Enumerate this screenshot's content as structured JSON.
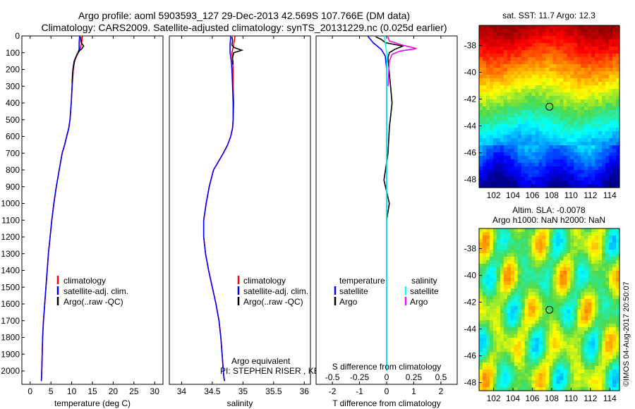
{
  "title_line1": "Argo profile: aoml 5903593_127 29-Dec-2013 42.569S 107.766E (DM data)",
  "title_line2": "Climatology: CARS2009. Satellite-adjusted climatology: synTS_20131229.nc (0.025d earlier)",
  "colors": {
    "climatology": "#ff0000",
    "satellite": "#0000ff",
    "argo": "#000000",
    "sal_satellite": "#00ffff",
    "sal_argo": "#ff00ff"
  },
  "chart_data": [
    {
      "id": "temperature",
      "type": "line",
      "xlabel": "temperature (deg C)",
      "ylabel": "",
      "xlim": [
        -2,
        32
      ],
      "ylim": [
        2080,
        0
      ],
      "xticks": [
        0,
        5,
        10,
        15,
        20,
        25,
        30
      ],
      "yticks": [
        0,
        100,
        200,
        300,
        400,
        500,
        600,
        700,
        800,
        900,
        1000,
        1100,
        1200,
        1300,
        1400,
        1500,
        1600,
        1700,
        1800,
        1900,
        2000
      ],
      "legend": [
        "climatology",
        "satellite-adj. clim.",
        "Argo(..raw -QC)"
      ],
      "series": [
        {
          "name": "climatology",
          "color": "#ff0000",
          "x": [
            12.6,
            12.4,
            12.0,
            11.6,
            11.2,
            10.7,
            10.4,
            10.1,
            9.9,
            9.6,
            9.3,
            8.8,
            8.3,
            7.7,
            7.0,
            6.3,
            5.7,
            5.2,
            4.8,
            4.4,
            4.1,
            3.8,
            3.5,
            3.2,
            3.0,
            2.9,
            2.8,
            2.75,
            2.7
          ],
          "y": [
            0,
            40,
            80,
            100,
            120,
            150,
            200,
            300,
            400,
            500,
            550,
            600,
            650,
            700,
            800,
            900,
            1000,
            1100,
            1200,
            1300,
            1400,
            1500,
            1600,
            1700,
            1800,
            1900,
            2000,
            2040,
            2060
          ]
        },
        {
          "name": "satellite-adj. clim.",
          "color": "#0000ff",
          "x": [
            11.9,
            11.8,
            11.8,
            11.5,
            11.1,
            10.6,
            10.3,
            10.1,
            9.9,
            9.6,
            9.3,
            8.8,
            8.3,
            7.7,
            7.0,
            6.3,
            5.7,
            5.2,
            4.8,
            4.4,
            4.1,
            3.8,
            3.5,
            3.2,
            3.0,
            2.9,
            2.8,
            2.75,
            2.7
          ],
          "y": [
            0,
            40,
            80,
            100,
            120,
            150,
            200,
            300,
            400,
            500,
            550,
            600,
            650,
            700,
            800,
            900,
            1000,
            1100,
            1200,
            1300,
            1400,
            1500,
            1600,
            1700,
            1800,
            1900,
            2000,
            2040,
            2060
          ]
        },
        {
          "name": "Argo(..raw -QC)",
          "color": "#000000",
          "x": [
            12.2,
            12.2,
            12.3,
            12.9,
            12.5,
            11.8,
            11.3,
            10.8,
            10.4,
            10.2,
            10.1
          ],
          "y": [
            5,
            20,
            40,
            60,
            75,
            90,
            110,
            140,
            180,
            230,
            280
          ]
        }
      ]
    },
    {
      "id": "salinity",
      "type": "line",
      "xlabel": "salinity",
      "ylabel": "",
      "xlim": [
        33.8,
        36.1
      ],
      "ylim": [
        2080,
        0
      ],
      "xticks": [
        34,
        34.5,
        35,
        35.5,
        36
      ],
      "legend": [
        "climatology",
        "satellite-adj. clim.",
        "Argo(..raw -QC)"
      ],
      "annotation_line1": "Argo equivalent",
      "annotation_line2": "PI: STEPHEN RISER , KENNETH JOHNSON",
      "series": [
        {
          "name": "climatology",
          "color": "#ff0000",
          "x": [
            34.87,
            34.85,
            34.82,
            34.83,
            34.84,
            34.84,
            34.85,
            34.84,
            34.83,
            34.8,
            34.75,
            34.68,
            34.6,
            34.52,
            34.45,
            34.4,
            34.36,
            34.36,
            34.39,
            34.44,
            34.5,
            34.56,
            34.61,
            34.64,
            34.66,
            34.68,
            34.69,
            34.7
          ],
          "y": [
            0,
            50,
            100,
            150,
            200,
            300,
            400,
            500,
            550,
            600,
            650,
            700,
            750,
            800,
            900,
            1000,
            1100,
            1200,
            1300,
            1400,
            1500,
            1600,
            1700,
            1800,
            1900,
            2000,
            2040,
            2060
          ]
        },
        {
          "name": "satellite-adj. clim.",
          "color": "#0000ff",
          "x": [
            34.8,
            34.79,
            34.79,
            34.81,
            34.82,
            34.83,
            34.84,
            34.84,
            34.83,
            34.8,
            34.75,
            34.68,
            34.6,
            34.52,
            34.45,
            34.4,
            34.36,
            34.36,
            34.39,
            34.44,
            34.5,
            34.56,
            34.61,
            34.64,
            34.66,
            34.68,
            34.69,
            34.7
          ],
          "y": [
            0,
            50,
            100,
            150,
            200,
            300,
            400,
            500,
            550,
            600,
            650,
            700,
            750,
            800,
            900,
            1000,
            1100,
            1200,
            1300,
            1400,
            1500,
            1600,
            1700,
            1800,
            1900,
            2000,
            2040,
            2060
          ]
        },
        {
          "name": "Argo(..raw -QC)",
          "color": "#000000",
          "x": [
            34.82,
            34.83,
            34.82,
            34.86,
            34.98,
            34.85,
            34.83,
            34.84
          ],
          "y": [
            5,
            30,
            55,
            70,
            85,
            100,
            130,
            170
          ]
        }
      ]
    },
    {
      "id": "difference",
      "type": "line",
      "xlabel": "T difference from climatology",
      "ylabel": "",
      "xlim": [
        -2.6,
        2.6
      ],
      "ylim": [
        2080,
        0
      ],
      "xticks": [
        -2,
        -1,
        0,
        1,
        2
      ],
      "s_xlabel": "S difference from climatology",
      "s_xticks": [
        "-0.5",
        "-0.25",
        "0",
        "0.25",
        "0.5"
      ],
      "legend_temperature": "temperature",
      "legend_salinity": "salinity",
      "legend_satellite": "satellite",
      "legend_argo": "Argo",
      "series": [
        {
          "name": "temperature satellite",
          "color": "#0000ff",
          "x": [
            -0.7,
            -0.5,
            -0.2,
            -0.05,
            0.0,
            0.0,
            0.0
          ],
          "y": [
            0,
            40,
            80,
            120,
            200,
            1000,
            2000
          ]
        },
        {
          "name": "temperature Argo",
          "color": "#000000",
          "x": [
            -0.4,
            -0.2,
            -0.05,
            0.6,
            0.3,
            0.1,
            0.05,
            0.2,
            0.1,
            0.05,
            -0.1,
            0.1,
            0.0
          ],
          "y": [
            5,
            20,
            40,
            60,
            80,
            100,
            130,
            400,
            550,
            700,
            860,
            1000,
            1100
          ]
        },
        {
          "name": "salinity satellite",
          "color": "#00ffff",
          "x": [
            -0.08,
            -0.04,
            0.02,
            0.0,
            0.0,
            0.0
          ],
          "y": [
            0,
            60,
            120,
            200,
            1000,
            2000
          ]
        },
        {
          "name": "salinity Argo",
          "color": "#ff00ff",
          "x": [
            0.05,
            0.1,
            0.6,
            1.1,
            0.5,
            0.2,
            0.1,
            0.05
          ],
          "y": [
            5,
            30,
            55,
            75,
            90,
            110,
            150,
            300
          ]
        }
      ]
    },
    {
      "id": "sst_map",
      "type": "heatmap",
      "title": "sat. SST: 11.7 Argo: 12.3",
      "xlim": [
        100.5,
        115
      ],
      "ylim": [
        -48.6,
        -36.5
      ],
      "xticks": [
        102,
        104,
        106,
        108,
        110,
        112,
        114
      ],
      "yticks": [
        -38,
        -40,
        -42,
        -44,
        -46,
        -48
      ],
      "marker": {
        "lon": 107.766,
        "lat": -42.569
      }
    },
    {
      "id": "sla_map",
      "type": "heatmap",
      "title_line1": "Altim. SLA: -0.0078",
      "title_line2": "Argo h1000: NaN h2000: NaN",
      "xlim": [
        100.5,
        115
      ],
      "ylim": [
        -48.6,
        -36.5
      ],
      "xticks": [
        102,
        104,
        106,
        108,
        110,
        112,
        114
      ],
      "yticks": [
        -38,
        -40,
        -42,
        -44,
        -46,
        -48
      ],
      "marker": {
        "lon": 107.766,
        "lat": -42.569
      }
    }
  ],
  "credit": "©IMOS 04-Aug-2017 20:50:07"
}
